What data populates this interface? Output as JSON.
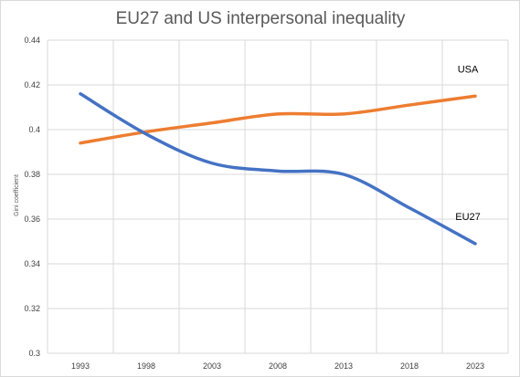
{
  "chart_data": {
    "type": "line",
    "title": "EU27 and US interpersonal inequality",
    "xlabel": "",
    "ylabel": "Gini coefficient",
    "x": [
      1993,
      1998,
      2003,
      2008,
      2013,
      2018,
      2023
    ],
    "x_tick_labels": [
      "1993",
      "1998",
      "2003",
      "2008",
      "2013",
      "2018",
      "2023"
    ],
    "ylim": [
      0.3,
      0.44
    ],
    "y_ticks": [
      0.3,
      0.32,
      0.34,
      0.36,
      0.38,
      0.4,
      0.42,
      0.44
    ],
    "y_tick_labels": [
      "0.3",
      "0.32",
      "0.34",
      "0.36",
      "0.38",
      "0.4",
      "0.42",
      "0.44"
    ],
    "grid": true,
    "legend": "none",
    "series": [
      {
        "name": "USA",
        "color": "#ED7D31",
        "values": [
          0.394,
          0.399,
          0.403,
          0.407,
          0.407,
          0.411,
          0.415
        ]
      },
      {
        "name": "EU27",
        "color": "#4472C4",
        "values": [
          0.416,
          0.398,
          0.385,
          0.3815,
          0.38,
          0.365,
          0.349
        ]
      }
    ]
  }
}
